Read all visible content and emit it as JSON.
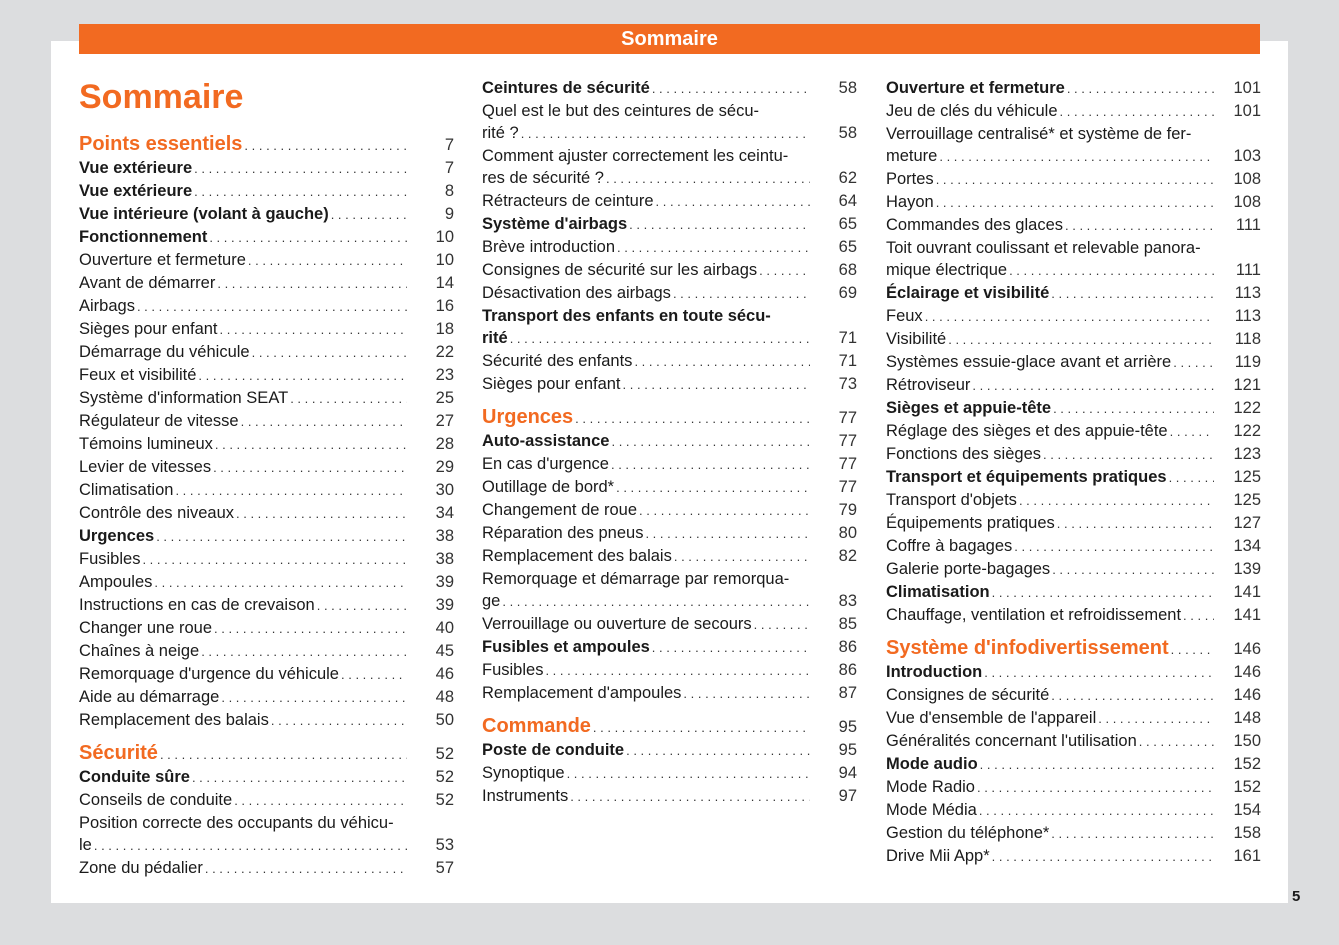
{
  "header": {
    "bar_title": "Sommaire",
    "page_title": "Sommaire",
    "page_number": "5"
  },
  "colors": {
    "accent": "#f26a21",
    "background": "#dcdddf"
  },
  "columns": [
    [
      {
        "type": "section",
        "lines": [
          "Points essentiels"
        ],
        "page": "7"
      },
      {
        "type": "bold",
        "lines": [
          "Vue extérieure"
        ],
        "page": "7"
      },
      {
        "type": "bold",
        "lines": [
          "Vue extérieure"
        ],
        "page": "8"
      },
      {
        "type": "bold",
        "lines": [
          "Vue intérieure (volant à gauche)"
        ],
        "page": "9"
      },
      {
        "type": "bold",
        "lines": [
          "Fonctionnement"
        ],
        "page": "10"
      },
      {
        "type": "normal",
        "lines": [
          "Ouverture et fermeture"
        ],
        "page": "10"
      },
      {
        "type": "normal",
        "lines": [
          "Avant de démarrer"
        ],
        "page": "14"
      },
      {
        "type": "normal",
        "lines": [
          "Airbags"
        ],
        "page": "16"
      },
      {
        "type": "normal",
        "lines": [
          "Sièges pour enfant"
        ],
        "page": "18"
      },
      {
        "type": "normal",
        "lines": [
          "Démarrage du véhicule"
        ],
        "page": "22"
      },
      {
        "type": "normal",
        "lines": [
          "Feux et visibilité"
        ],
        "page": "23"
      },
      {
        "type": "normal",
        "lines": [
          "Système d'information SEAT"
        ],
        "page": "25"
      },
      {
        "type": "normal",
        "lines": [
          "Régulateur de vitesse"
        ],
        "page": "27"
      },
      {
        "type": "normal",
        "lines": [
          "Témoins lumineux"
        ],
        "page": "28"
      },
      {
        "type": "normal",
        "lines": [
          "Levier de vitesses"
        ],
        "page": "29"
      },
      {
        "type": "normal",
        "lines": [
          "Climatisation"
        ],
        "page": "30"
      },
      {
        "type": "normal",
        "lines": [
          "Contrôle des niveaux"
        ],
        "page": "34"
      },
      {
        "type": "bold",
        "lines": [
          "Urgences"
        ],
        "page": "38"
      },
      {
        "type": "normal",
        "lines": [
          "Fusibles"
        ],
        "page": "38"
      },
      {
        "type": "normal",
        "lines": [
          "Ampoules"
        ],
        "page": "39"
      },
      {
        "type": "normal",
        "lines": [
          "Instructions en cas de crevaison"
        ],
        "page": "39"
      },
      {
        "type": "normal",
        "lines": [
          "Changer une roue"
        ],
        "page": "40"
      },
      {
        "type": "normal",
        "lines": [
          "Chaînes à neige"
        ],
        "page": "45"
      },
      {
        "type": "normal",
        "lines": [
          "Remorquage d'urgence du véhicule"
        ],
        "page": "46"
      },
      {
        "type": "normal",
        "lines": [
          "Aide au démarrage"
        ],
        "page": "48"
      },
      {
        "type": "normal",
        "lines": [
          "Remplacement des balais"
        ],
        "page": "50"
      },
      {
        "type": "section",
        "lines": [
          "Sécurité"
        ],
        "page": "52"
      },
      {
        "type": "bold",
        "lines": [
          "Conduite sûre"
        ],
        "page": "52"
      },
      {
        "type": "normal",
        "lines": [
          "Conseils de conduite"
        ],
        "page": "52"
      },
      {
        "type": "normal",
        "lines": [
          "Position correcte des occupants du véhicu-",
          "le"
        ],
        "page": "53"
      },
      {
        "type": "normal",
        "lines": [
          "Zone du pédalier"
        ],
        "page": "57"
      }
    ],
    [
      {
        "type": "bold",
        "lines": [
          "Ceintures de sécurité"
        ],
        "page": "58"
      },
      {
        "type": "normal",
        "lines": [
          "Quel est le but des ceintures de sécu-",
          "rité ?"
        ],
        "page": "58"
      },
      {
        "type": "normal",
        "lines": [
          "Comment ajuster correctement les ceintu-",
          "res de sécurité ?"
        ],
        "page": "62"
      },
      {
        "type": "normal",
        "lines": [
          "Rétracteurs de ceinture"
        ],
        "page": "64"
      },
      {
        "type": "bold",
        "lines": [
          "Système d'airbags"
        ],
        "page": "65"
      },
      {
        "type": "normal",
        "lines": [
          "Brève introduction"
        ],
        "page": "65"
      },
      {
        "type": "normal",
        "lines": [
          "Consignes de sécurité sur les airbags"
        ],
        "page": "68"
      },
      {
        "type": "normal",
        "lines": [
          "Désactivation des airbags"
        ],
        "page": "69"
      },
      {
        "type": "bold",
        "lines": [
          "Transport des enfants en toute sécu-",
          "rité"
        ],
        "page": "71"
      },
      {
        "type": "normal",
        "lines": [
          "Sécurité des enfants"
        ],
        "page": "71"
      },
      {
        "type": "normal",
        "lines": [
          "Sièges pour enfant"
        ],
        "page": "73"
      },
      {
        "type": "section",
        "lines": [
          "Urgences"
        ],
        "page": "77"
      },
      {
        "type": "bold",
        "lines": [
          "Auto-assistance"
        ],
        "page": "77"
      },
      {
        "type": "normal",
        "lines": [
          "En cas d'urgence"
        ],
        "page": "77"
      },
      {
        "type": "normal",
        "lines": [
          "Outillage de bord*"
        ],
        "page": "77"
      },
      {
        "type": "normal",
        "lines": [
          "Changement de roue"
        ],
        "page": "79"
      },
      {
        "type": "normal",
        "lines": [
          "Réparation des pneus"
        ],
        "page": "80"
      },
      {
        "type": "normal",
        "lines": [
          "Remplacement des balais"
        ],
        "page": "82"
      },
      {
        "type": "normal",
        "lines": [
          "Remorquage et démarrage par remorqua-",
          "ge"
        ],
        "page": "83"
      },
      {
        "type": "normal",
        "lines": [
          "Verrouillage ou ouverture de secours"
        ],
        "page": "85"
      },
      {
        "type": "bold",
        "lines": [
          "Fusibles et ampoules"
        ],
        "page": "86"
      },
      {
        "type": "normal",
        "lines": [
          "Fusibles"
        ],
        "page": "86"
      },
      {
        "type": "normal",
        "lines": [
          "Remplacement d'ampoules"
        ],
        "page": "87"
      },
      {
        "type": "section",
        "lines": [
          "Commande"
        ],
        "page": "95"
      },
      {
        "type": "bold",
        "lines": [
          "Poste de conduite"
        ],
        "page": "95"
      },
      {
        "type": "normal",
        "lines": [
          "Synoptique"
        ],
        "page": "94"
      },
      {
        "type": "normal",
        "lines": [
          "Instruments"
        ],
        "page": "97"
      }
    ],
    [
      {
        "type": "bold",
        "lines": [
          "Ouverture et fermeture"
        ],
        "page": "101"
      },
      {
        "type": "normal",
        "lines": [
          "Jeu de clés du véhicule"
        ],
        "page": "101"
      },
      {
        "type": "normal",
        "lines": [
          "Verrouillage centralisé* et système de fer-",
          "meture"
        ],
        "page": "103"
      },
      {
        "type": "normal",
        "lines": [
          "Portes"
        ],
        "page": "108"
      },
      {
        "type": "normal",
        "lines": [
          "Hayon"
        ],
        "page": "108"
      },
      {
        "type": "normal",
        "lines": [
          "Commandes des glaces"
        ],
        "page": "111"
      },
      {
        "type": "normal",
        "lines": [
          "Toit ouvrant coulissant et relevable panora-",
          "mique électrique"
        ],
        "page": "111"
      },
      {
        "type": "bold",
        "lines": [
          "Éclairage et visibilité"
        ],
        "page": "113"
      },
      {
        "type": "normal",
        "lines": [
          "Feux"
        ],
        "page": "113"
      },
      {
        "type": "normal",
        "lines": [
          "Visibilité"
        ],
        "page": "118"
      },
      {
        "type": "normal",
        "lines": [
          "Systèmes essuie-glace avant et arrière"
        ],
        "page": "119"
      },
      {
        "type": "normal",
        "lines": [
          "Rétroviseur"
        ],
        "page": "121"
      },
      {
        "type": "bold",
        "lines": [
          "Sièges et appuie-tête"
        ],
        "page": "122"
      },
      {
        "type": "normal",
        "lines": [
          "Réglage des sièges et des appuie-tête"
        ],
        "page": "122"
      },
      {
        "type": "normal",
        "lines": [
          "Fonctions des sièges"
        ],
        "page": "123"
      },
      {
        "type": "bold",
        "lines": [
          "Transport et équipements pratiques"
        ],
        "page": "125"
      },
      {
        "type": "normal",
        "lines": [
          "Transport d'objets"
        ],
        "page": "125"
      },
      {
        "type": "normal",
        "lines": [
          "Équipements pratiques"
        ],
        "page": "127"
      },
      {
        "type": "normal",
        "lines": [
          "Coffre à bagages"
        ],
        "page": "134"
      },
      {
        "type": "normal",
        "lines": [
          "Galerie porte-bagages"
        ],
        "page": "139"
      },
      {
        "type": "bold",
        "lines": [
          "Climatisation"
        ],
        "page": "141"
      },
      {
        "type": "normal",
        "lines": [
          "Chauffage, ventilation et refroidissement"
        ],
        "page": "141"
      },
      {
        "type": "section",
        "lines": [
          "Système d'infodivertissement"
        ],
        "page": "146"
      },
      {
        "type": "bold",
        "lines": [
          "Introduction"
        ],
        "page": "146"
      },
      {
        "type": "normal",
        "lines": [
          "Consignes de sécurité"
        ],
        "page": "146"
      },
      {
        "type": "normal",
        "lines": [
          "Vue d'ensemble de l'appareil"
        ],
        "page": "148"
      },
      {
        "type": "normal",
        "lines": [
          "Généralités concernant l'utilisation"
        ],
        "page": "150"
      },
      {
        "type": "bold",
        "lines": [
          "Mode audio"
        ],
        "page": "152"
      },
      {
        "type": "normal",
        "lines": [
          "Mode Radio"
        ],
        "page": "152"
      },
      {
        "type": "normal",
        "lines": [
          "Mode Média"
        ],
        "page": "154"
      },
      {
        "type": "normal",
        "lines": [
          "Gestion du téléphone*"
        ],
        "page": "158"
      },
      {
        "type": "normal",
        "lines": [
          "Drive Mii App*"
        ],
        "page": "161"
      }
    ]
  ]
}
